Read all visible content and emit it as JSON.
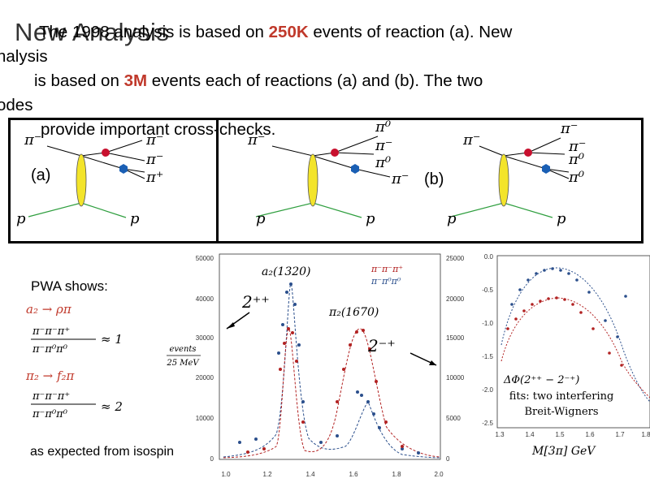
{
  "title": "New Analysis",
  "paragraph": {
    "l1a": "The 1998 analysis is based on ",
    "l1b": "250K",
    "l1c": " events of reaction (a).  New",
    "l2": "nalysis",
    "l3a": "is based on ",
    "l3b": "3M",
    "l3c": " events each of reactions (a) and (b).  The two",
    "l4": "odes",
    "l5": "provide important cross-checks."
  },
  "diagrams": {
    "label_a": "(a)",
    "label_b": "(b)",
    "particles": {
      "pi_minus": "π⁻",
      "pi_zero": "π⁰",
      "pi_plus": "π⁺",
      "proton": "p"
    }
  },
  "left_panel": {
    "heading": "PWA shows:",
    "a2": "a₂ → ρπ",
    "a2_num": "π⁻π⁻π⁺",
    "a2_den": "π⁻π⁰π⁰",
    "a2_val": "≈ 1",
    "pi2": "π₂ → f₂π",
    "pi2_num": "π⁻π⁻π⁺",
    "pi2_den": "π⁻π⁰π⁰",
    "pi2_val": "≈ 2",
    "footer": "as expected from isospin"
  },
  "mass_plot": {
    "label_a2": "a₂(1320)",
    "label_pi2": "π₂(1670)",
    "legend_1": "π⁻π⁻π⁺",
    "legend_2": "π⁻π⁰π⁰",
    "jpc_1": "2⁺⁺",
    "jpc_2": "2⁻⁺",
    "ylabel_num": "events",
    "ylabel_den": "25 MeV",
    "left_ticks": [
      "50000",
      "40000",
      "30000",
      "20000",
      "10000",
      "0"
    ],
    "right_ticks": [
      "25000",
      "20000",
      "15000",
      "10000",
      "5000",
      "0"
    ],
    "x_ticks": [
      "1.0",
      "1.2",
      "1.4",
      "1.6",
      "1.8",
      "2.0"
    ]
  },
  "phase_plot": {
    "y_ticks": [
      "0.0",
      "-0.5",
      "-1.0",
      "-1.5",
      "-2.0",
      "-2.5"
    ],
    "x_ticks": [
      "1.3",
      "1.4",
      "1.5",
      "1.6",
      "1.7",
      "1.8"
    ],
    "label": "ΔΦ(2⁺⁺ − 2⁻⁺)",
    "caption_1": "fits: two interfering",
    "caption_2": "Breit-Wigners",
    "xlabel": "M[3π]  GeV"
  },
  "colors": {
    "highlight": "#c0392b",
    "red_series": "#b22222",
    "blue_series": "#2b4f8c"
  }
}
